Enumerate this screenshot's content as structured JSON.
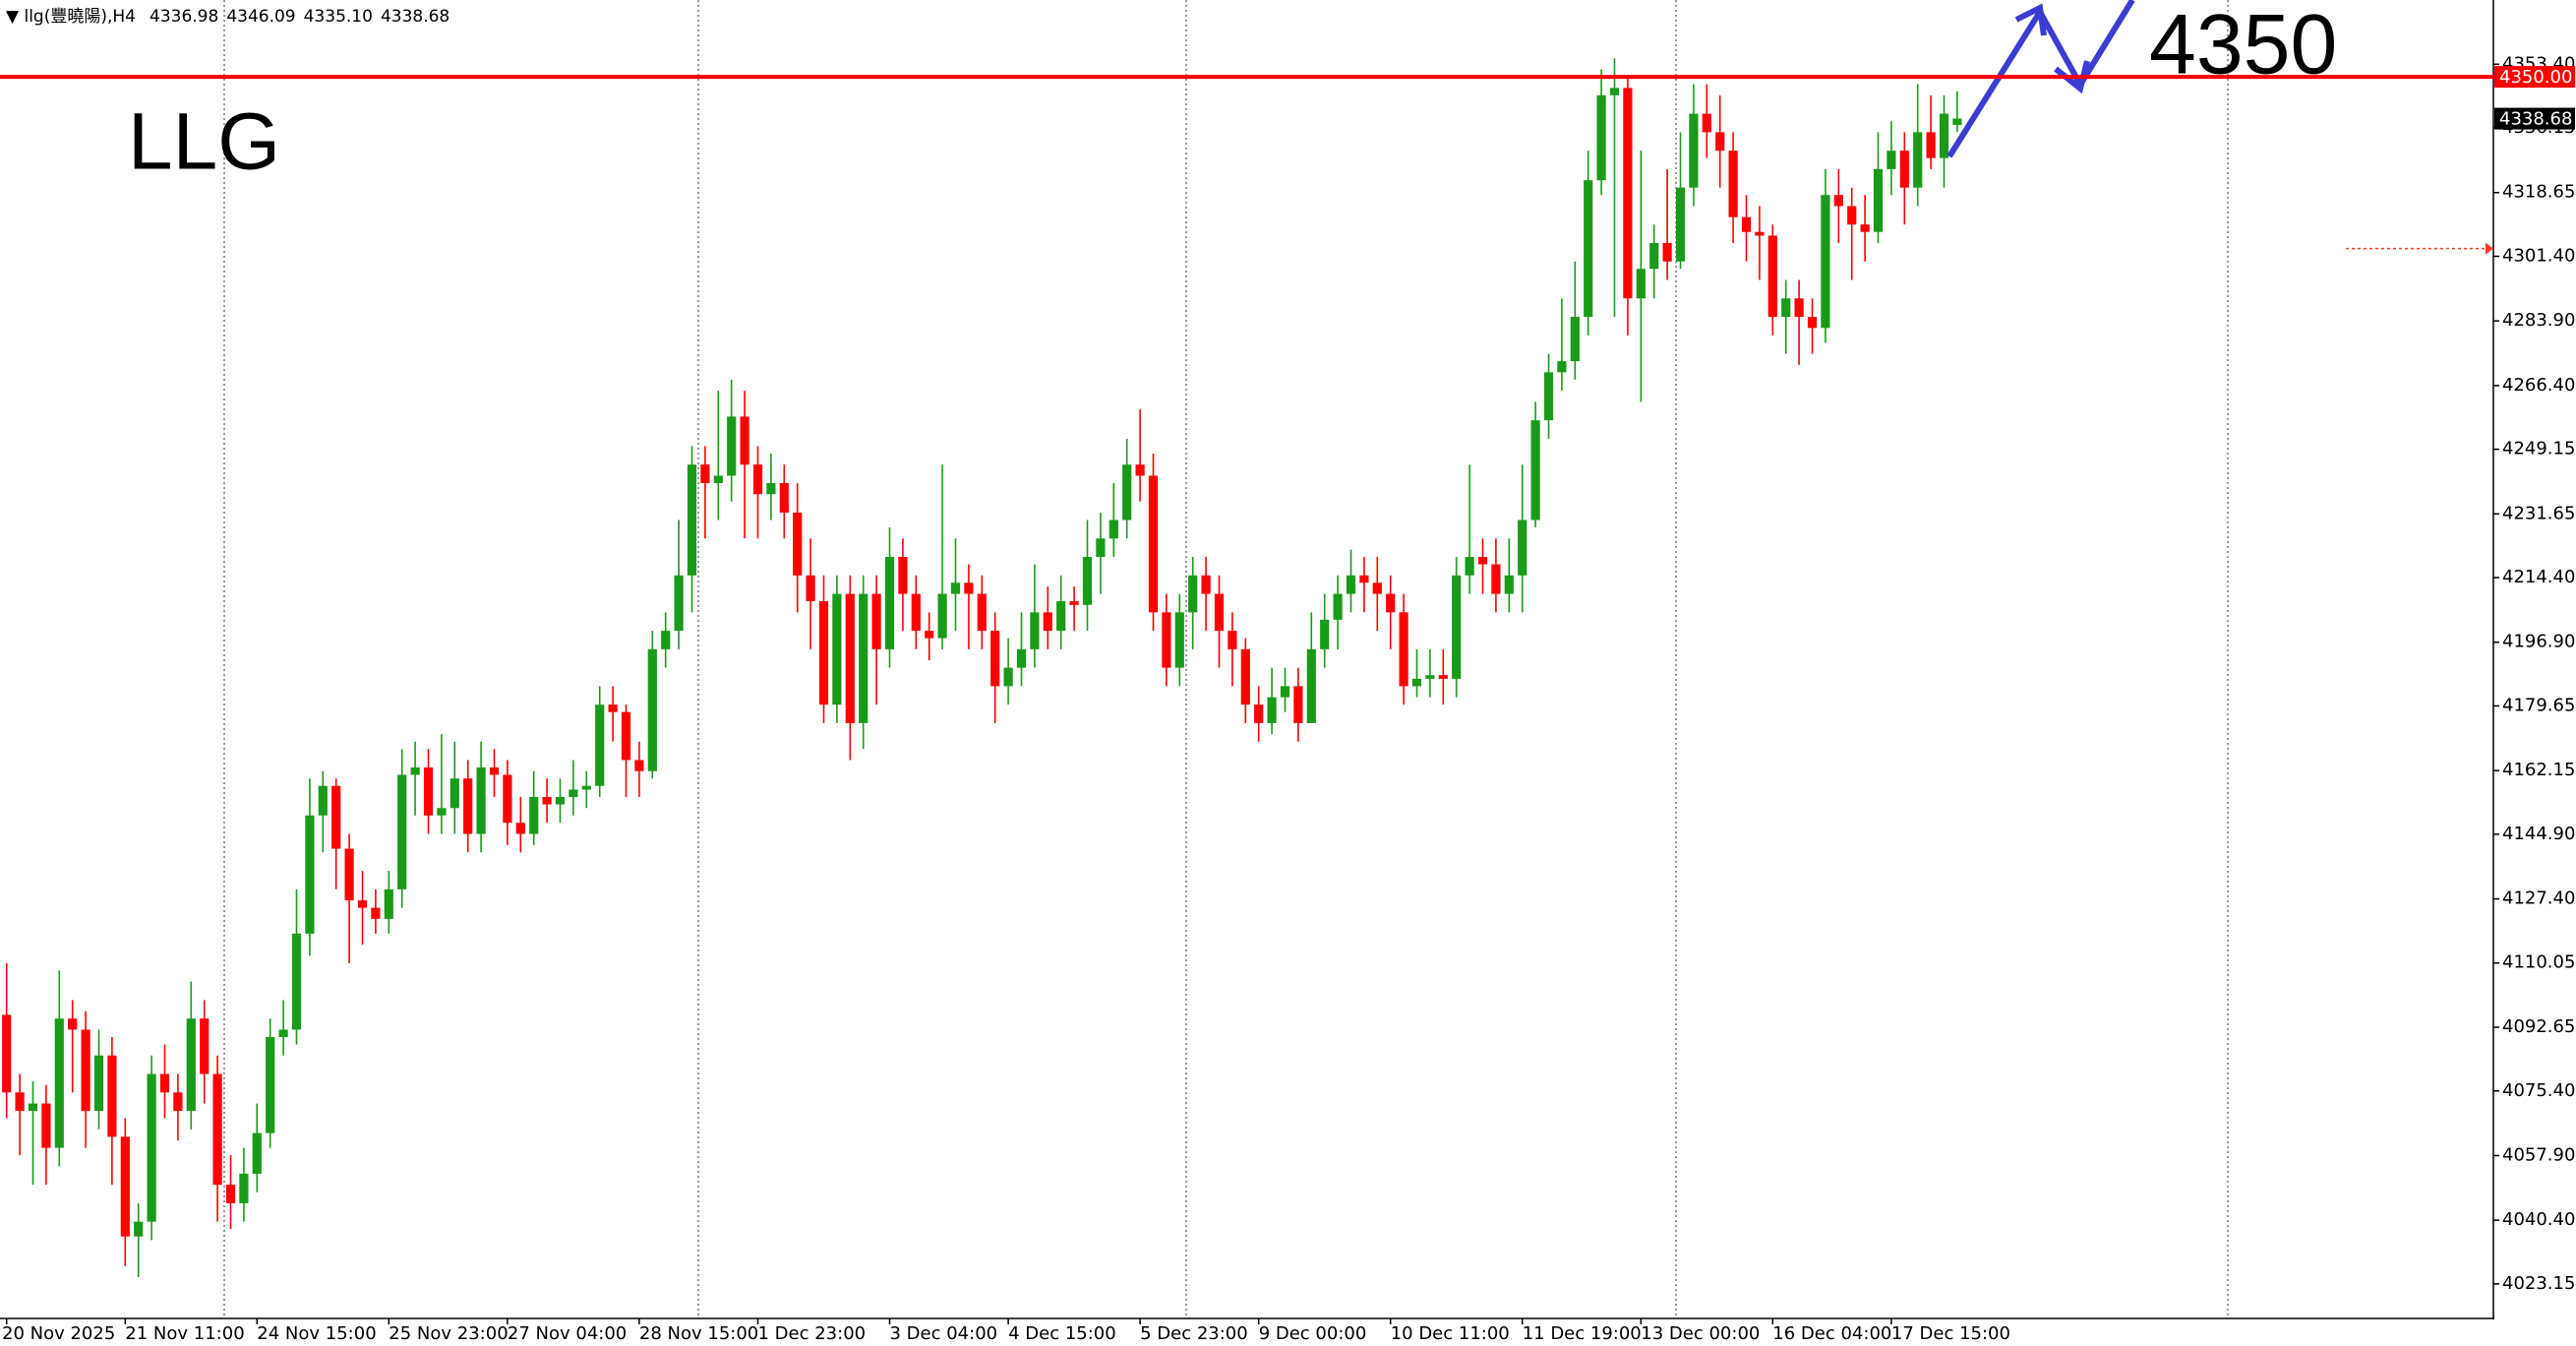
{
  "chart_data": {
    "type": "candlestick",
    "symbol": "llg(豐曉陽),H4",
    "quote": [
      "4336.98",
      "4346.09",
      "4335.10",
      "4338.68"
    ],
    "annotations": [
      "LLG",
      "4350"
    ],
    "up_color": "#1a9a1a",
    "down_color": "#ff0000",
    "hline": {
      "value": 4350,
      "label": "4350.00",
      "color": "#ff0000"
    },
    "bid": 4338.68,
    "alert_level": 4303.5,
    "ylim": [
      4013.8,
      4370.8
    ],
    "yticks": [
      4023.15,
      {
        "value": 4040.4,
        "label": "4040.40"
      },
      {
        "value": 4057.9,
        "label": "4057.90"
      },
      {
        "value": 4075.4,
        "label": "4075.40"
      },
      4092.65,
      4110.05,
      {
        "value": 4127.4,
        "label": "4127.40"
      },
      {
        "value": 4144.9,
        "label": "4144.90"
      },
      4162.15,
      4179.65,
      {
        "value": 4196.9,
        "label": "4196.90"
      },
      {
        "value": 4214.4,
        "label": "4214.40"
      },
      4231.65,
      4249.15,
      {
        "value": 4266.4,
        "label": "4266.40"
      },
      {
        "value": 4283.9,
        "label": "4283.90"
      },
      {
        "value": 4301.4,
        "label": "4301.40"
      },
      4318.65,
      4336.15,
      {
        "value": 4353.4,
        "label": "4353.40"
      }
    ],
    "categories": [
      "20 Nov 2025",
      null,
      null,
      null,
      null,
      null,
      null,
      null,
      null,
      "21 Nov 11:00",
      null,
      null,
      null,
      null,
      null,
      null,
      null,
      null,
      null,
      "24 Nov 15:00",
      null,
      null,
      null,
      null,
      null,
      null,
      null,
      null,
      null,
      "25 Nov 23:00",
      null,
      null,
      null,
      null,
      null,
      null,
      null,
      null,
      "27 Nov 04:00",
      null,
      null,
      null,
      null,
      null,
      null,
      null,
      null,
      null,
      "28 Nov 15:00",
      null,
      null,
      null,
      null,
      null,
      null,
      null,
      null,
      "1 Dec 23:00",
      null,
      null,
      null,
      null,
      null,
      null,
      null,
      null,
      null,
      "3 Dec 04:00",
      null,
      null,
      null,
      null,
      null,
      null,
      null,
      null,
      "4 Dec 15:00",
      null,
      null,
      null,
      null,
      null,
      null,
      null,
      null,
      null,
      "5 Dec 23:00",
      null,
      null,
      null,
      null,
      null,
      null,
      null,
      null,
      "9 Dec 00:00",
      null,
      null,
      null,
      null,
      null,
      null,
      null,
      null,
      null,
      "10 Dec 11:00",
      null,
      null,
      null,
      null,
      null,
      null,
      null,
      null,
      null,
      "11 Dec 19:00",
      null,
      null,
      null,
      null,
      null,
      null,
      null,
      null,
      "13 Dec 00:00",
      null,
      null,
      null,
      null,
      null,
      null,
      null,
      null,
      null,
      "16 Dec 04:00",
      null,
      null,
      null,
      null,
      null,
      null,
      null,
      null,
      "17 Dec 15:00",
      null,
      null,
      null,
      null,
      null
    ],
    "open": [
      4096,
      4075,
      4070,
      4072,
      4060,
      4095,
      4092,
      4070,
      4085,
      4063,
      4036,
      4040,
      4080,
      4075,
      4070,
      4095,
      4080,
      4050,
      4045,
      4053,
      4064,
      4090,
      4092,
      4118,
      4150,
      4158,
      4141,
      4127,
      4125,
      4122,
      4130,
      4161,
      4163,
      4150,
      4152,
      4160,
      4145,
      4163,
      4161,
      4148,
      4145,
      4155,
      4153,
      4155,
      4157,
      4158,
      4180,
      4178,
      4165,
      4162,
      4195,
      4200,
      4215,
      4245,
      4240,
      4242,
      4258,
      4245,
      4237,
      4240,
      4232,
      4215,
      4208,
      4180,
      4210,
      4175,
      4210,
      4195,
      4220,
      4210,
      4200,
      4198,
      4210,
      4213,
      4210,
      4200,
      4185,
      4190,
      4195,
      4205,
      4200,
      4208,
      4207,
      4220,
      4225,
      4230,
      4245,
      4242,
      4205,
      4190,
      4205,
      4215,
      4210,
      4200,
      4195,
      4180,
      4175,
      4182,
      4185,
      4175,
      4195,
      4203,
      4210,
      4215,
      4213,
      4210,
      4205,
      4185,
      4187,
      4188,
      4187,
      4215,
      4220,
      4218,
      4210,
      4215,
      4230,
      4257,
      4270,
      4273,
      4285,
      4322,
      4345,
      4347,
      4290,
      4298,
      4305,
      4300,
      4320,
      4340,
      4335,
      4330,
      4312,
      4308,
      4307,
      4285,
      4290,
      4285,
      4282,
      4318,
      4315,
      4310,
      4308,
      4325,
      4330,
      4320,
      4335,
      4328,
      4336.98
    ],
    "high": [
      4110,
      4080,
      4078,
      4077,
      4108,
      4100,
      4097,
      4092,
      4090,
      4068,
      4045,
      4085,
      4088,
      4080,
      4105,
      4100,
      4085,
      4058,
      4060,
      4072,
      4095,
      4100,
      4130,
      4160,
      4162,
      4160,
      4145,
      4135,
      4130,
      4135,
      4168,
      4170,
      4168,
      4172,
      4170,
      4165,
      4170,
      4168,
      4165,
      4155,
      4162,
      4160,
      4160,
      4165,
      4162,
      4185,
      4185,
      4180,
      4170,
      4200,
      4205,
      4230,
      4250,
      4250,
      4265,
      4268,
      4265,
      4250,
      4248,
      4245,
      4240,
      4225,
      4215,
      4215,
      4215,
      4215,
      4215,
      4228,
      4225,
      4215,
      4205,
      4245,
      4225,
      4218,
      4215,
      4205,
      4198,
      4205,
      4218,
      4212,
      4215,
      4212,
      4230,
      4232,
      4240,
      4252,
      4260,
      4248,
      4210,
      4210,
      4220,
      4220,
      4215,
      4205,
      4198,
      4185,
      4190,
      4190,
      4190,
      4205,
      4210,
      4215,
      4222,
      4220,
      4220,
      4215,
      4210,
      4195,
      4195,
      4195,
      4220,
      4245,
      4225,
      4225,
      4225,
      4245,
      4262,
      4275,
      4290,
      4300,
      4330,
      4352,
      4355,
      4350,
      4330,
      4310,
      4325,
      4335,
      4348,
      4348,
      4345,
      4335,
      4318,
      4315,
      4310,
      4295,
      4295,
      4290,
      4325,
      4325,
      4320,
      4318,
      4335,
      4338,
      4335,
      4348,
      4345,
      4345,
      4346.09
    ],
    "low": [
      4068,
      4058,
      4050,
      4050,
      4055,
      4075,
      4060,
      4065,
      4050,
      4028,
      4025,
      4035,
      4068,
      4062,
      4065,
      4072,
      4040,
      4038,
      4040,
      4048,
      4060,
      4085,
      4088,
      4112,
      4140,
      4130,
      4110,
      4115,
      4118,
      4118,
      4125,
      4150,
      4145,
      4145,
      4145,
      4140,
      4140,
      4155,
      4142,
      4140,
      4142,
      4148,
      4148,
      4150,
      4152,
      4155,
      4170,
      4155,
      4155,
      4160,
      4190,
      4195,
      4205,
      4225,
      4230,
      4235,
      4225,
      4225,
      4230,
      4225,
      4205,
      4195,
      4175,
      4175,
      4165,
      4168,
      4180,
      4190,
      4200,
      4195,
      4192,
      4195,
      4200,
      4195,
      4195,
      4175,
      4180,
      4185,
      4190,
      4195,
      4195,
      4200,
      4200,
      4210,
      4220,
      4225,
      4235,
      4200,
      4185,
      4185,
      4195,
      4200,
      4190,
      4185,
      4175,
      4170,
      4172,
      4178,
      4170,
      4175,
      4190,
      4195,
      4205,
      4205,
      4200,
      4195,
      4180,
      4182,
      4182,
      4180,
      4182,
      4210,
      4210,
      4205,
      4205,
      4205,
      4228,
      4252,
      4265,
      4268,
      4280,
      4318,
      4285,
      4280,
      4262,
      4290,
      4295,
      4298,
      4315,
      4328,
      4320,
      4305,
      4300,
      4295,
      4280,
      4275,
      4272,
      4275,
      4278,
      4305,
      4295,
      4300,
      4305,
      4318,
      4310,
      4315,
      4325,
      4320,
      4335.1
    ],
    "close": [
      4075,
      4070,
      4072,
      4060,
      4095,
      4092,
      4070,
      4085,
      4063,
      4036,
      4040,
      4080,
      4075,
      4070,
      4095,
      4080,
      4050,
      4045,
      4053,
      4064,
      4090,
      4092,
      4118,
      4150,
      4158,
      4141,
      4127,
      4125,
      4122,
      4130,
      4161,
      4163,
      4150,
      4152,
      4160,
      4145,
      4163,
      4161,
      4148,
      4145,
      4155,
      4153,
      4155,
      4157,
      4158,
      4180,
      4178,
      4165,
      4162,
      4195,
      4200,
      4215,
      4245,
      4240,
      4242,
      4258,
      4245,
      4237,
      4240,
      4232,
      4215,
      4208,
      4180,
      4210,
      4175,
      4210,
      4195,
      4220,
      4210,
      4200,
      4198,
      4210,
      4213,
      4210,
      4200,
      4185,
      4190,
      4195,
      4205,
      4200,
      4208,
      4207,
      4220,
      4225,
      4230,
      4245,
      4242,
      4205,
      4190,
      4205,
      4215,
      4210,
      4200,
      4195,
      4180,
      4175,
      4182,
      4185,
      4175,
      4195,
      4203,
      4210,
      4215,
      4213,
      4210,
      4205,
      4185,
      4187,
      4188,
      4187,
      4215,
      4220,
      4218,
      4210,
      4215,
      4230,
      4257,
      4270,
      4273,
      4285,
      4322,
      4345,
      4347,
      4290,
      4298,
      4305,
      4300,
      4320,
      4340,
      4335,
      4330,
      4312,
      4308,
      4307,
      4285,
      4290,
      4285,
      4282,
      4318,
      4315,
      4310,
      4308,
      4325,
      4330,
      4320,
      4335,
      4328,
      4340,
      4338.68
    ]
  }
}
